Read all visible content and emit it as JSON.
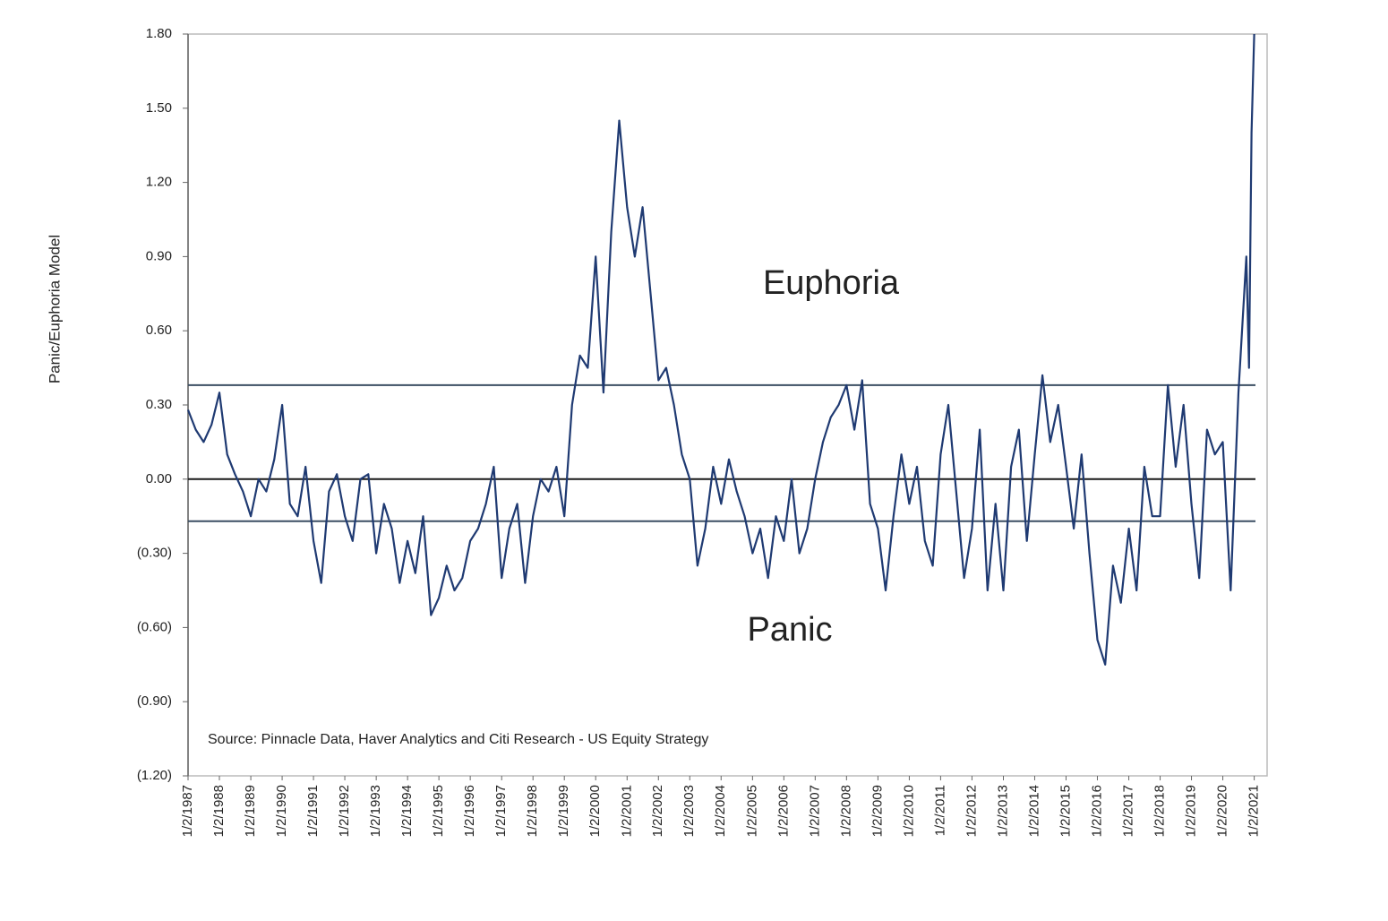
{
  "chart_data": {
    "type": "line",
    "y_label": "Panic/Euphoria  Model",
    "annotations": [
      "Euphoria",
      "Panic",
      "Source:  Pinnacle  Data,  Haver Analytics  and Citi  Research  - US Equity  Strategy"
    ],
    "xlim": [
      "1/2/1987",
      "6/1/2021"
    ],
    "ylim": [
      -1.2,
      1.8
    ],
    "yticks": [
      {
        "value": 1.8,
        "label": "1.80"
      },
      {
        "value": 1.5,
        "label": "1.50"
      },
      {
        "value": 1.2,
        "label": "1.20"
      },
      {
        "value": 0.9,
        "label": "0.90"
      },
      {
        "value": 0.6,
        "label": "0.60"
      },
      {
        "value": 0.3,
        "label": "0.30"
      },
      {
        "value": 0,
        "label": "0.00"
      },
      {
        "value": -0.3,
        "label": "(0.30)"
      },
      {
        "value": -0.6,
        "label": "(0.60)"
      },
      {
        "value": -0.9,
        "label": "(0.90)"
      },
      {
        "value": -1.2,
        "label": "(1.20)"
      }
    ],
    "xticks": [
      "1/2/1987",
      "1/2/1988",
      "1/2/1989",
      "1/2/1990",
      "1/2/1991",
      "1/2/1992",
      "1/2/1993",
      "1/2/1994",
      "1/2/1995",
      "1/2/1996",
      "1/2/1997",
      "1/2/1998",
      "1/2/1999",
      "1/2/2000",
      "1/2/2001",
      "1/2/2002",
      "1/2/2003",
      "1/2/2004",
      "1/2/2005",
      "1/2/2006",
      "1/2/2007",
      "1/2/2008",
      "1/2/2009",
      "1/2/2010",
      "1/2/2011",
      "1/2/2012",
      "1/2/2013",
      "1/2/2014",
      "1/2/2015",
      "1/2/2016",
      "1/2/2017",
      "1/2/2018",
      "1/2/2019",
      "1/2/2020",
      "1/2/2021"
    ],
    "reference_lines": [
      0.38,
      0,
      -0.17
    ],
    "x": [
      "1/2/1987",
      "4/2/1987",
      "7/2/1987",
      "10/2/1987",
      "1/2/1988",
      "4/2/1988",
      "7/2/1988",
      "10/2/1988",
      "1/2/1989",
      "4/2/1989",
      "7/2/1989",
      "10/2/1989",
      "1/2/1990",
      "4/2/1990",
      "7/2/1990",
      "10/2/1990",
      "1/2/1991",
      "4/2/1991",
      "7/2/1991",
      "10/2/1991",
      "1/2/1992",
      "4/2/1992",
      "7/2/1992",
      "10/2/1992",
      "1/2/1993",
      "4/2/1993",
      "7/2/1993",
      "10/2/1993",
      "1/2/1994",
      "4/2/1994",
      "7/2/1994",
      "10/2/1994",
      "1/2/1995",
      "4/2/1995",
      "7/2/1995",
      "10/2/1995",
      "1/2/1996",
      "4/2/1996",
      "7/2/1996",
      "10/2/1996",
      "1/2/1997",
      "4/2/1997",
      "7/2/1997",
      "10/2/1997",
      "1/2/1998",
      "4/2/1998",
      "7/2/1998",
      "10/2/1998",
      "1/2/1999",
      "4/2/1999",
      "7/2/1999",
      "10/2/1999",
      "1/2/2000",
      "4/2/2000",
      "7/2/2000",
      "10/2/2000",
      "1/2/2001",
      "4/2/2001",
      "7/2/2001",
      "10/2/2001",
      "1/2/2002",
      "4/2/2002",
      "7/2/2002",
      "10/2/2002",
      "1/2/2003",
      "4/2/2003",
      "7/2/2003",
      "10/2/2003",
      "1/2/2004",
      "4/2/2004",
      "7/2/2004",
      "10/2/2004",
      "1/2/2005",
      "4/2/2005",
      "7/2/2005",
      "10/2/2005",
      "1/2/2006",
      "4/2/2006",
      "7/2/2006",
      "10/2/2006",
      "1/2/2007",
      "4/2/2007",
      "7/2/2007",
      "10/2/2007",
      "1/2/2008",
      "4/2/2008",
      "7/2/2008",
      "10/2/2008",
      "1/2/2009",
      "4/2/2009",
      "7/2/2009",
      "10/2/2009",
      "1/2/2010",
      "4/2/2010",
      "7/2/2010",
      "10/2/2010",
      "1/2/2011",
      "4/2/2011",
      "7/2/2011",
      "10/2/2011",
      "1/2/2012",
      "4/2/2012",
      "7/2/2012",
      "10/2/2012",
      "1/2/2013",
      "4/2/2013",
      "7/2/2013",
      "10/2/2013",
      "1/2/2014",
      "4/2/2014",
      "7/2/2014",
      "10/2/2014",
      "1/2/2015",
      "4/2/2015",
      "7/2/2015",
      "10/2/2015",
      "1/2/2016",
      "4/2/2016",
      "7/2/2016",
      "10/2/2016",
      "1/2/2017",
      "4/2/2017",
      "7/2/2017",
      "10/2/2017",
      "1/2/2018",
      "4/2/2018",
      "7/2/2018",
      "10/2/2018",
      "1/2/2019",
      "4/2/2019",
      "7/2/2019",
      "10/2/2019",
      "1/2/2020",
      "4/2/2020",
      "7/2/2020",
      "10/2/2020",
      "11/2/2020",
      "12/2/2020",
      "1/2/2021"
    ],
    "series": [
      {
        "name": "Panic/Euphoria Model",
        "color": "#1f3a72",
        "values": [
          0.28,
          0.2,
          0.15,
          0.22,
          0.35,
          0.1,
          0.02,
          -0.05,
          -0.15,
          0.0,
          -0.05,
          0.08,
          0.3,
          -0.1,
          -0.15,
          0.05,
          -0.25,
          -0.42,
          -0.05,
          0.02,
          -0.15,
          -0.25,
          0.0,
          0.02,
          -0.3,
          -0.1,
          -0.2,
          -0.42,
          -0.25,
          -0.38,
          -0.15,
          -0.55,
          -0.48,
          -0.35,
          -0.45,
          -0.4,
          -0.25,
          -0.2,
          -0.1,
          0.05,
          -0.4,
          -0.2,
          -0.1,
          -0.42,
          -0.15,
          0.0,
          -0.05,
          0.05,
          -0.15,
          0.3,
          0.5,
          0.45,
          0.9,
          0.35,
          1.0,
          1.45,
          1.1,
          0.9,
          1.1,
          0.75,
          0.4,
          0.45,
          0.3,
          0.1,
          0.0,
          -0.35,
          -0.2,
          0.05,
          -0.1,
          0.08,
          -0.05,
          -0.15,
          -0.3,
          -0.2,
          -0.4,
          -0.15,
          -0.25,
          0.0,
          -0.3,
          -0.2,
          0.0,
          0.15,
          0.25,
          0.3,
          0.38,
          0.2,
          0.4,
          -0.1,
          -0.2,
          -0.45,
          -0.15,
          0.1,
          -0.1,
          0.05,
          -0.25,
          -0.35,
          0.1,
          0.3,
          -0.05,
          -0.4,
          -0.2,
          0.2,
          -0.45,
          -0.1,
          -0.45,
          0.05,
          0.2,
          -0.25,
          0.1,
          0.42,
          0.15,
          0.3,
          0.05,
          -0.2,
          0.1,
          -0.3,
          -0.65,
          -0.75,
          -0.35,
          -0.5,
          -0.2,
          -0.45,
          0.05,
          -0.15,
          -0.15,
          0.38,
          0.05,
          0.3,
          -0.1,
          -0.4,
          0.2,
          0.1,
          0.15,
          -0.45,
          0.35,
          0.9,
          0.45,
          1.4,
          1.8
        ]
      }
    ]
  }
}
